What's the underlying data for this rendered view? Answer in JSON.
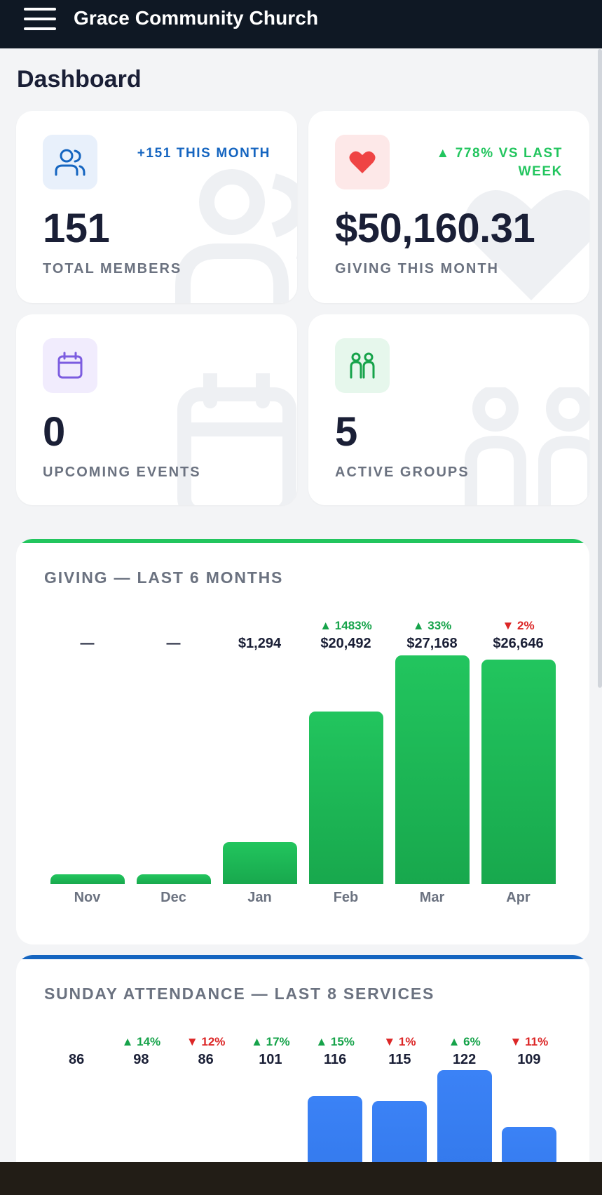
{
  "app": {
    "title": "Grace Community Church"
  },
  "page": {
    "title": "Dashboard"
  },
  "stats": {
    "members": {
      "value": "151",
      "label": "TOTAL MEMBERS",
      "trend": "+151 THIS MONTH",
      "icon": "users-icon",
      "color": "#1565c0"
    },
    "giving": {
      "value": "$50,160.31",
      "label": "GIVING THIS MONTH",
      "trend_line1": "▲ 778% VS LAST",
      "trend_line2": "WEEK",
      "icon": "heart-icon",
      "color": "#22c55e"
    },
    "events": {
      "value": "0",
      "label": "UPCOMING EVENTS",
      "icon": "calendar-icon",
      "color": "#7c5ce0"
    },
    "groups": {
      "value": "5",
      "label": "ACTIVE GROUPS",
      "icon": "people-icon",
      "color": "#16a34a"
    }
  },
  "chart_data": [
    {
      "type": "bar",
      "title": "GIVING — LAST 6 MONTHS",
      "categories": [
        "Nov",
        "Dec",
        "Jan",
        "Feb",
        "Mar",
        "Apr"
      ],
      "values": [
        0,
        0,
        1294,
        20492,
        27168,
        26646
      ],
      "value_labels": [
        "—",
        "—",
        "$1,294",
        "$20,492",
        "$27,168",
        "$26,646"
      ],
      "change_labels": [
        "",
        "",
        "",
        "▲ 1483%",
        "▲ 33%",
        "▼ 2%"
      ],
      "change_dirs": [
        "",
        "",
        "",
        "up",
        "up",
        "down"
      ],
      "ylim": [
        0,
        27168
      ],
      "color": "#22c55e"
    },
    {
      "type": "bar",
      "title": "SUNDAY ATTENDANCE — LAST 8 SERVICES",
      "values": [
        86,
        98,
        86,
        101,
        116,
        115,
        122,
        109
      ],
      "value_labels": [
        "86",
        "98",
        "86",
        "101",
        "116",
        "115",
        "122",
        "109"
      ],
      "change_labels": [
        "",
        "▲ 14%",
        "▼ 12%",
        "▲ 17%",
        "▲ 15%",
        "▼ 1%",
        "▲ 6%",
        "▼ 11%"
      ],
      "change_dirs": [
        "",
        "up",
        "down",
        "up",
        "up",
        "down",
        "up",
        "down"
      ],
      "color": "#3b82f6"
    }
  ]
}
